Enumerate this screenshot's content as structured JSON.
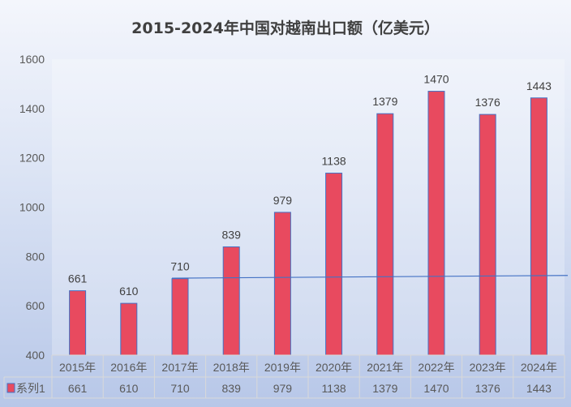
{
  "chart_data": {
    "type": "bar",
    "title": "2015-2024年中国对越南出口额（亿美元）",
    "categories": [
      "2015年",
      "2016年",
      "2017年",
      "2018年",
      "2019年",
      "2020年",
      "2021年",
      "2022年",
      "2023年",
      "2024年"
    ],
    "series": [
      {
        "name": "系列1",
        "values": [
          661,
          610,
          710,
          839,
          979,
          1138,
          1379,
          1470,
          1376,
          1443
        ]
      }
    ],
    "ylim": [
      400,
      1600
    ],
    "yticks": [
      400,
      600,
      800,
      1000,
      1200,
      1400,
      1600
    ],
    "data_labels": true,
    "data_table": true,
    "trendline": {
      "from_category": "2017年",
      "start_value": 712,
      "end_value": 723,
      "color": "#4472c4"
    },
    "grid": false,
    "colors": {
      "bar": "#e84a5f",
      "bar_border": "#4472c4",
      "text": "#404040"
    }
  }
}
